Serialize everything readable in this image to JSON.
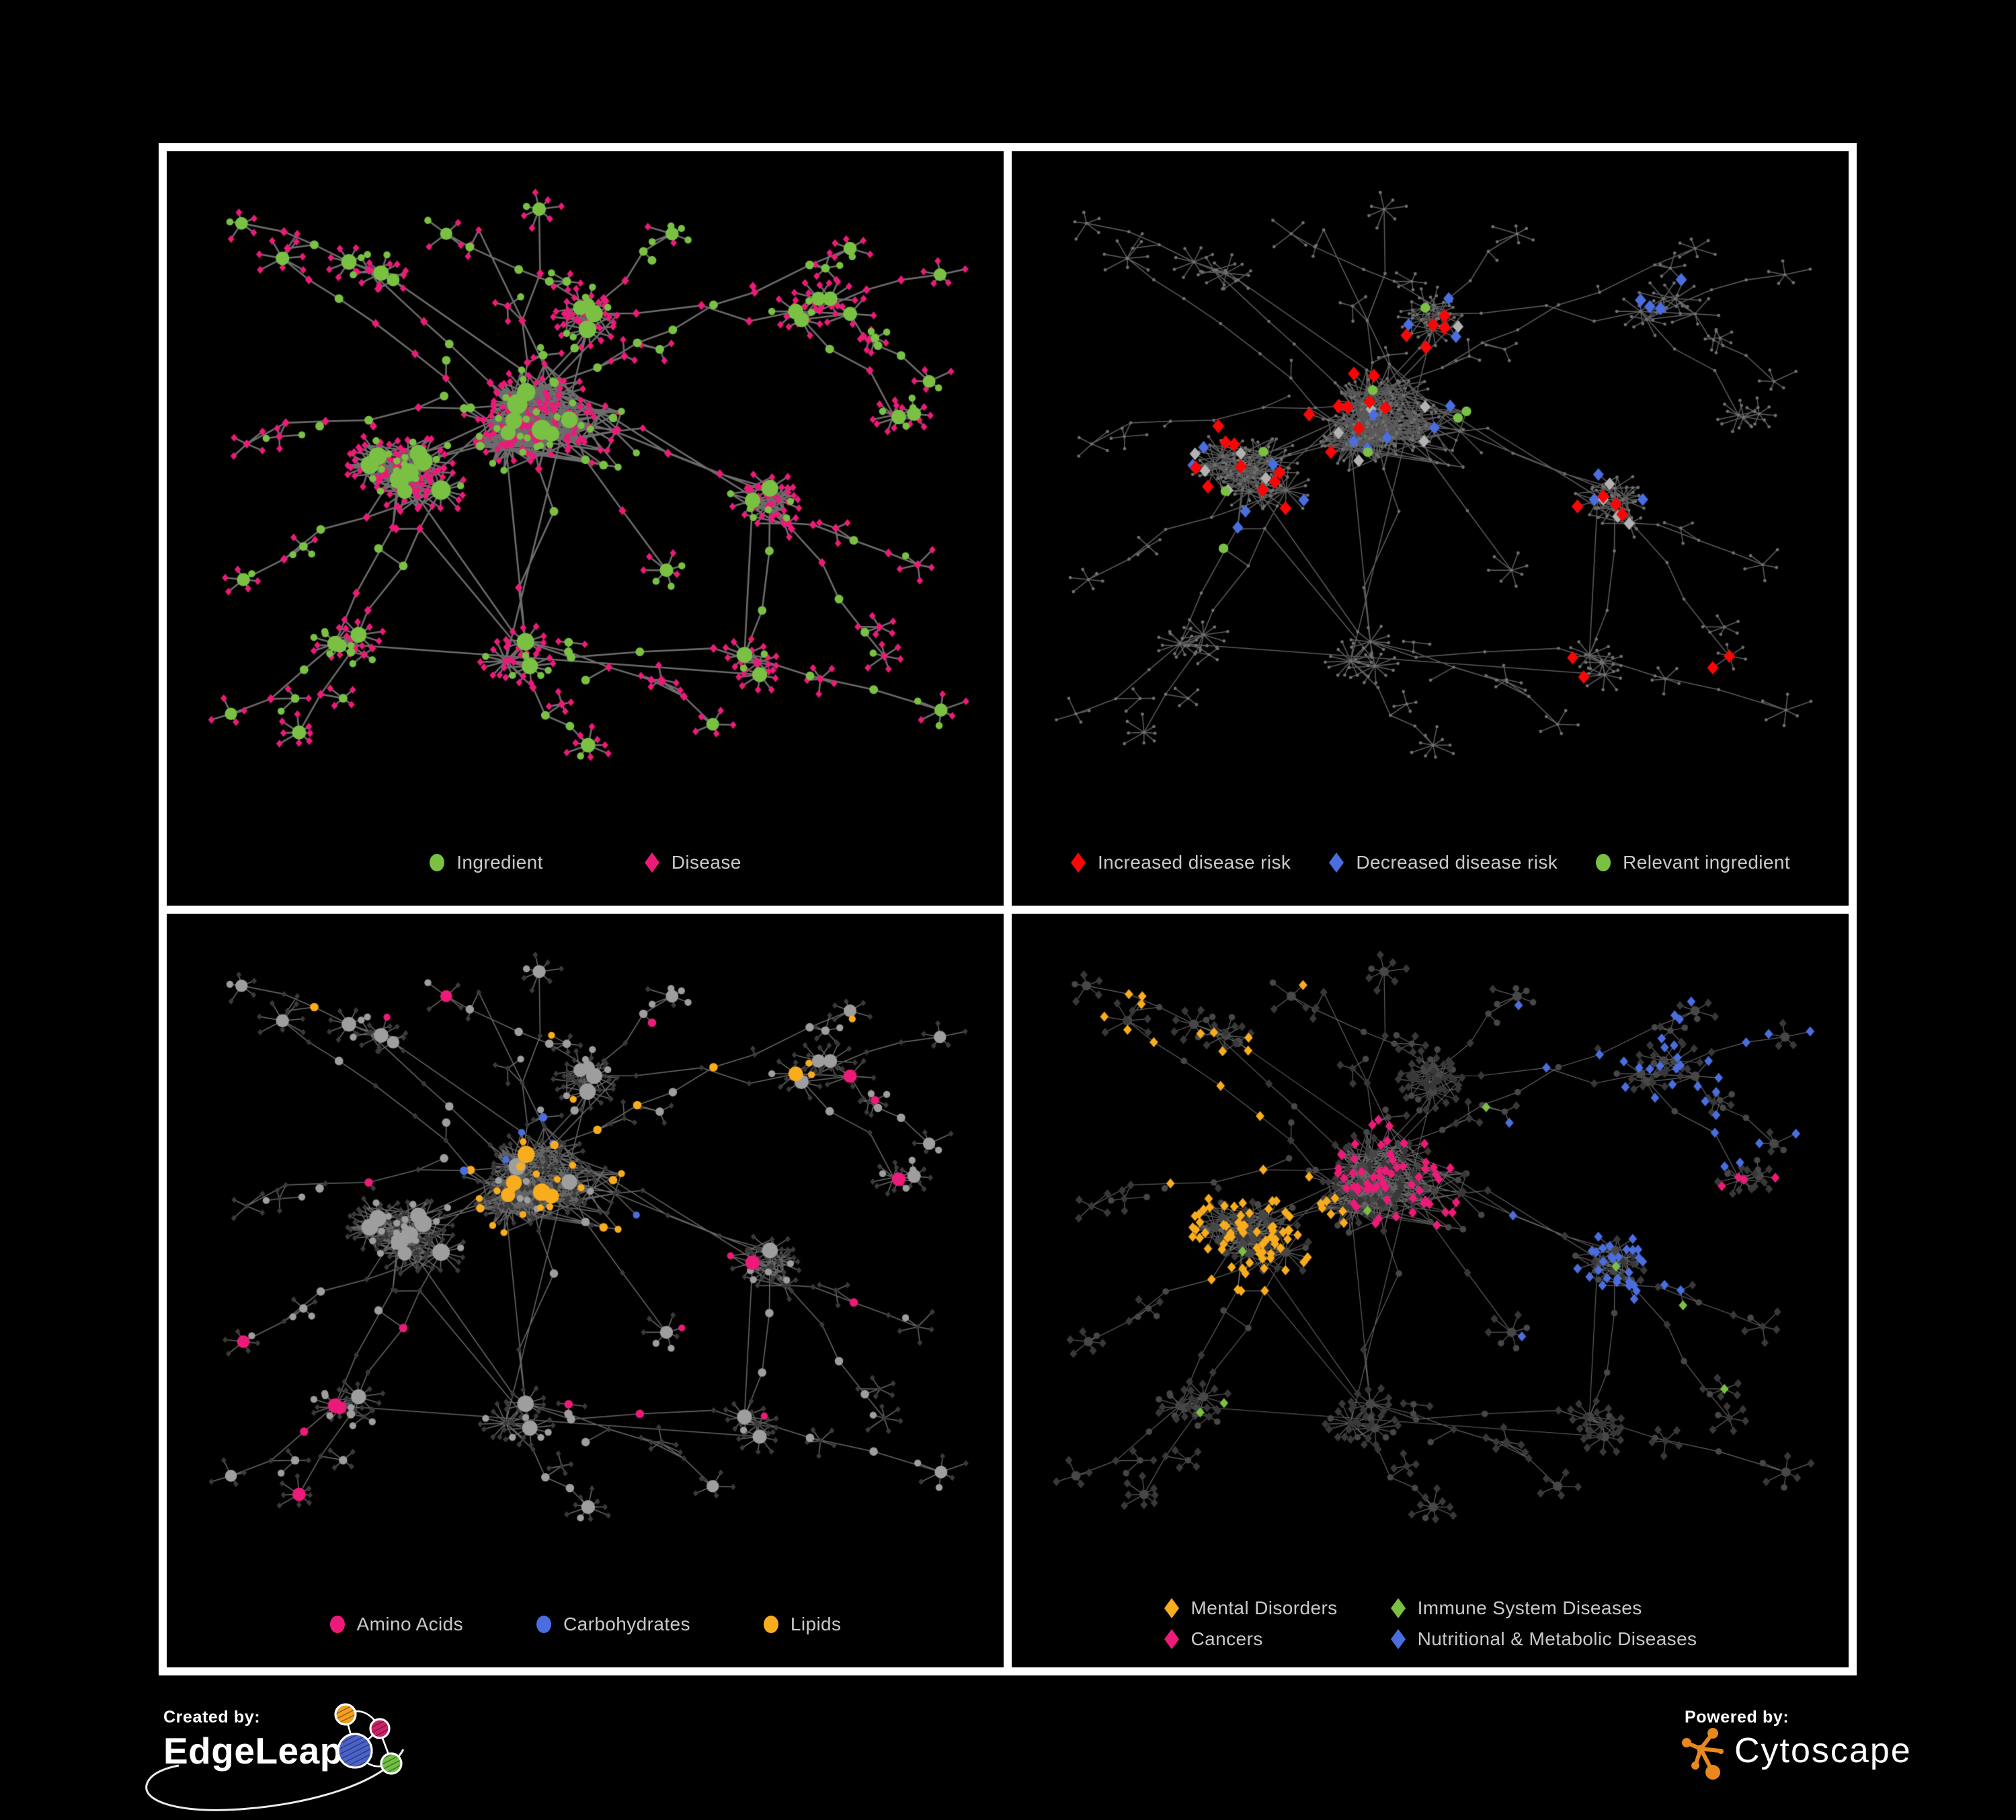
{
  "poster": {
    "background": "#000000",
    "frame_color": "#ffffff",
    "legend_text_color": "#c9c9c9"
  },
  "panels": [
    {
      "id": "ingredient-disease",
      "legend": {
        "columns": 1,
        "items": [
          {
            "shape": "circle",
            "color": "#7ac143",
            "label": "Ingredient"
          },
          {
            "shape": "diamond",
            "color": "#ec1a78",
            "label": "Disease"
          }
        ]
      }
    },
    {
      "id": "disease-risk",
      "legend": {
        "columns": 1,
        "items": [
          {
            "shape": "diamond",
            "color": "#f90606",
            "label": "Increased disease risk"
          },
          {
            "shape": "diamond",
            "color": "#4a6edf",
            "label": "Decreased disease risk"
          },
          {
            "shape": "circle",
            "color": "#7ac143",
            "label": "Relevant ingredient"
          }
        ]
      }
    },
    {
      "id": "macronutrient-classes",
      "legend": {
        "columns": 1,
        "items": [
          {
            "shape": "circle",
            "color": "#ec1a78",
            "label": "Amino Acids"
          },
          {
            "shape": "circle",
            "color": "#4a6edf",
            "label": "Carbohydrates"
          },
          {
            "shape": "circle",
            "color": "#f9ac1c",
            "label": "Lipids"
          }
        ]
      }
    },
    {
      "id": "disease-categories",
      "legend": {
        "columns": 2,
        "items": [
          {
            "shape": "diamond",
            "color": "#f9ac1c",
            "label": "Mental Disorders"
          },
          {
            "shape": "diamond",
            "color": "#7ac143",
            "label": "Immune System Diseases"
          },
          {
            "shape": "diamond",
            "color": "#ec1a78",
            "label": "Cancers"
          },
          {
            "shape": "diamond",
            "color": "#4a6edf",
            "label": "Nutritional & Metabolic Diseases"
          }
        ]
      }
    }
  ],
  "network": {
    "seed": 9043,
    "edge_styles": [
      {
        "color": "#757575",
        "width": 2.6,
        "alpha": 0.92
      },
      {
        "color": "#6a6a6a",
        "width": 1.6,
        "alpha": 0.85
      },
      {
        "color": "#7e7e7e",
        "width": 1.6,
        "alpha": 0.8
      },
      {
        "color": "#909090",
        "width": 1.15,
        "alpha": 0.7
      }
    ],
    "palette": {
      "tiny_gray": "#707070",
      "silver": "#b2b2b2",
      "gray_circle": "#9e9e9e",
      "dark_diamond": "#3a3a3a",
      "dim_diamond": "#383838",
      "dark_circle": "#474747"
    }
  },
  "footer": {
    "created_by_label": "Created by:",
    "edgeleap_brand": "EdgeLeap",
    "powered_by_label": "Powered by:",
    "cytoscape_brand": "Cytoscape",
    "cytoscape_orange": "#e8881f",
    "edgeleap_colors": {
      "orange": "#f3a01f",
      "pink": "#cb2368",
      "blue": "#4a62c9",
      "green": "#6fbf44"
    }
  }
}
